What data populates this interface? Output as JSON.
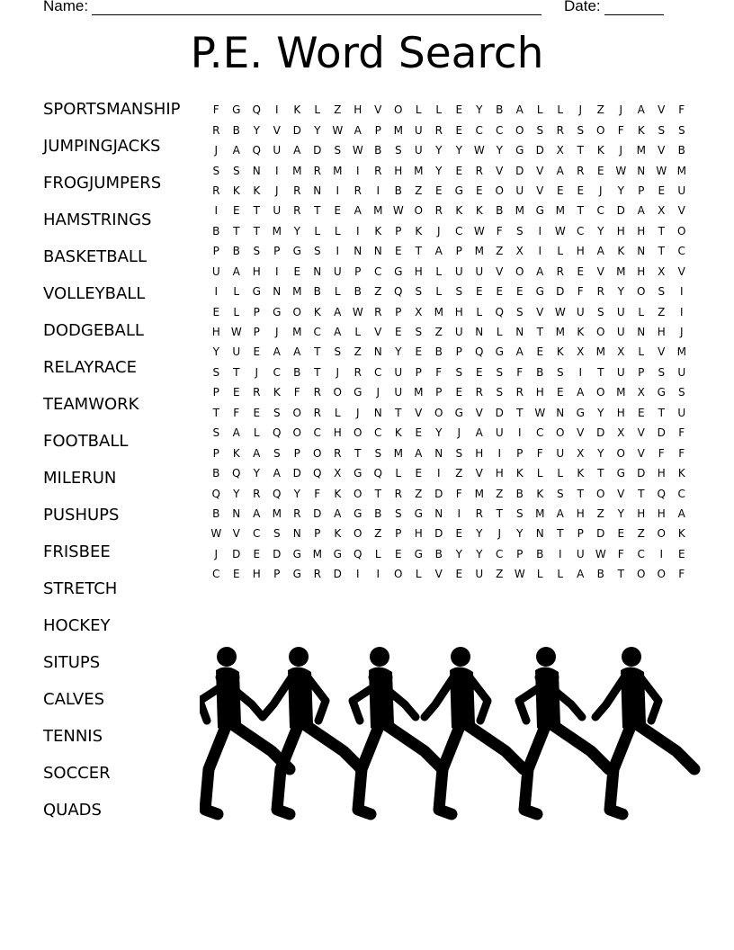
{
  "header": {
    "name_label": "Name:",
    "date_label": "Date:"
  },
  "title": "P.E. Word Search",
  "words": [
    "SPORTSMANSHIP",
    "JUMPINGJACKS",
    "FROGJUMPERS",
    "HAMSTRINGS",
    "BASKETBALL",
    "VOLLEYBALL",
    "DODGEBALL",
    "RELAYRACE",
    "TEAMWORK",
    "FOOTBALL",
    "MILERUN",
    "PUSHUPS",
    "FRISBEE",
    "STRETCH",
    "HOCKEY",
    "SITUPS",
    "CALVES",
    "TENNIS",
    "SOCCER",
    "QUADS"
  ],
  "grid": [
    "FGQIKLZHVOLLEYBALLJZJAVF",
    "RBYVDYWAPMURECCOSRSOFKSS",
    "JAQUADSWBSUYYWYGDXTKJMVB",
    "SSNIMRMIRHMYERVDVAREWNWM",
    "RKKJRNIRIBZEGEOUVEEJYPEU",
    "IETURTEAMWORKKBMGMTCDAXV",
    "BTTMYLLIKPKJCWFSIWCYHHTO",
    "PBSPGSINNETAPMZXILHAKNTC",
    "UAHIENUPCGHLUUVOAREVMHXV",
    "ILGNMBLBZQSLSEEEGDFRYOSI",
    "ELPGOKAWRPXMHLQSVWUSULZI",
    "HWPJMCALVESZUNLNTMKOUNHJ",
    "YUEAATSZNYEBPQGAEKXMXLVM",
    "STJCBTJRCUPFSESFBSITUPSU",
    "PERKFROGJUMPERSRHEAOMXGS",
    "TFESORLJNTVOGVDTWNGYHETU",
    "SALQOCHOCKEYJAUICOVDXVDF",
    "PKASPORTSMANSHIPFUXYOVFF",
    "BQYADQXGQLEIZVHKLLKTGDHK",
    "QYRQYFKOTRZDFMZBKSTOVTQC",
    "BNAMRDAGBSGNIRTSMAHZYHHA",
    "WVCSNPKOZPHDEYJYNTPDEZOK",
    "JDEDGMGQLEGBYYCPBIUWFCIE",
    "CEHPGRDIIOLVEUZWLLABTOOF"
  ],
  "illustration": "runners-silhouette"
}
